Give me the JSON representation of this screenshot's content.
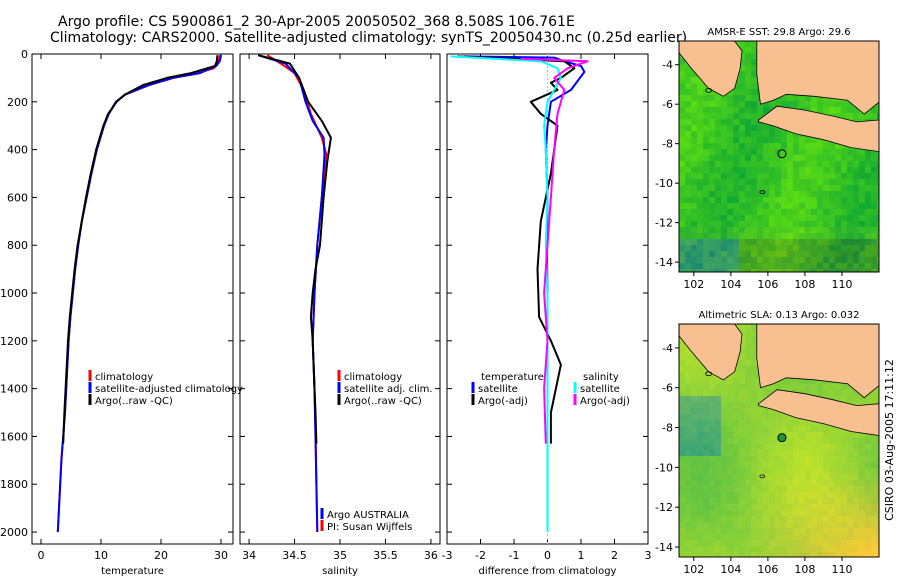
{
  "header": {
    "title_line1": "Argo profile: CS 5900861_2 30-Apr-2005 20050502_368 8.508S 106.761E",
    "title_line2": "Climatology: CARS2000. Satellite-adjusted climatology: synTS_20050430.nc (0.25d earlier)"
  },
  "colors": {
    "climatology": "#ff0000",
    "satellite": "#0000ff",
    "argo": "#000000",
    "satellite_salinity": "#00ffff",
    "argo_salinity": "#ff00ff",
    "land": "#f8c090"
  },
  "side_label": "CSIRO 03-Aug-2005 17:11:12",
  "chart_data": [
    {
      "type": "line",
      "id": "temperature",
      "xlabel": "temperature",
      "ylabel": "",
      "xlim": [
        -1.5,
        32
      ],
      "ylim": [
        2050,
        0
      ],
      "x_ticks": [
        0,
        10,
        20,
        30
      ],
      "y_ticks": [
        0,
        200,
        400,
        600,
        800,
        1000,
        1200,
        1400,
        1600,
        1800,
        2000
      ],
      "series": [
        {
          "name": "climatology",
          "color": "#ff0000",
          "points": [
            [
              29.8,
              5
            ],
            [
              29.6,
              30
            ],
            [
              28.8,
              60
            ],
            [
              26,
              80
            ],
            [
              22,
              100
            ],
            [
              18,
              130
            ],
            [
              14,
              170
            ],
            [
              12.5,
              200
            ],
            [
              11.3,
              250
            ],
            [
              10.5,
              300
            ],
            [
              9.3,
              400
            ],
            [
              8.4,
              500
            ],
            [
              7.6,
              600
            ],
            [
              6.8,
              700
            ],
            [
              6.2,
              800
            ],
            [
              5.7,
              900
            ],
            [
              5.3,
              1000
            ],
            [
              4.9,
              1100
            ],
            [
              4.6,
              1200
            ],
            [
              4.4,
              1300
            ],
            [
              4.2,
              1400
            ],
            [
              4,
              1500
            ],
            [
              3.7,
              1600
            ],
            [
              3.4,
              1700
            ],
            [
              3.2,
              1800
            ],
            [
              3,
              1900
            ],
            [
              2.8,
              2000
            ]
          ]
        },
        {
          "name": "satellite-adjusted climatology",
          "color": "#0000ff",
          "points": [
            [
              30,
              5
            ],
            [
              29.8,
              30
            ],
            [
              29.2,
              50
            ],
            [
              26.5,
              80
            ],
            [
              22,
              100
            ],
            [
              18,
              130
            ],
            [
              14,
              170
            ],
            [
              12.5,
              200
            ],
            [
              11.3,
              250
            ],
            [
              10.5,
              300
            ],
            [
              9.3,
              400
            ],
            [
              8.4,
              500
            ],
            [
              7.6,
              600
            ],
            [
              6.8,
              700
            ],
            [
              6.2,
              800
            ],
            [
              5.7,
              900
            ],
            [
              5.3,
              1000
            ],
            [
              4.9,
              1100
            ],
            [
              4.6,
              1200
            ],
            [
              4.4,
              1300
            ],
            [
              4.2,
              1400
            ],
            [
              4,
              1500
            ],
            [
              3.7,
              1600
            ],
            [
              3.4,
              1700
            ],
            [
              3.2,
              1800
            ],
            [
              3,
              1900
            ],
            [
              2.8,
              2000
            ]
          ]
        },
        {
          "name": "Argo(..raw -QC)",
          "color": "#000000",
          "points": [
            [
              29.4,
              5
            ],
            [
              29.3,
              30
            ],
            [
              29,
              50
            ],
            [
              25,
              80
            ],
            [
              21,
              100
            ],
            [
              17,
              130
            ],
            [
              14,
              170
            ],
            [
              12.6,
              200
            ],
            [
              11.2,
              250
            ],
            [
              10.4,
              300
            ],
            [
              9.2,
              400
            ],
            [
              8.3,
              500
            ],
            [
              7.5,
              600
            ],
            [
              6.8,
              700
            ],
            [
              6.1,
              800
            ],
            [
              5.6,
              900
            ],
            [
              5.2,
              1000
            ],
            [
              4.8,
              1100
            ],
            [
              4.5,
              1200
            ],
            [
              4.3,
              1300
            ],
            [
              4.1,
              1400
            ],
            [
              3.9,
              1500
            ],
            [
              3.7,
              1630
            ]
          ]
        }
      ],
      "legend": [
        "climatology",
        "satellite-adjusted climatology",
        "Argo(..raw -QC)"
      ]
    },
    {
      "type": "line",
      "id": "salinity",
      "xlabel": "salinity",
      "ylabel": "",
      "xlim": [
        33.9,
        36.1
      ],
      "ylim": [
        2050,
        0
      ],
      "x_ticks": [
        34,
        34.5,
        35,
        35.5,
        36
      ],
      "series": [
        {
          "name": "climatology",
          "color": "#ff0000",
          "points": [
            [
              34.2,
              5
            ],
            [
              34.35,
              40
            ],
            [
              34.5,
              80
            ],
            [
              34.6,
              150
            ],
            [
              34.68,
              250
            ],
            [
              34.8,
              350
            ],
            [
              34.85,
              420
            ],
            [
              34.8,
              600
            ],
            [
              34.75,
              800
            ],
            [
              34.72,
              1000
            ],
            [
              34.7,
              1200
            ],
            [
              34.72,
              1400
            ],
            [
              34.73,
              1600
            ],
            [
              34.74,
              1800
            ],
            [
              34.75,
              2000
            ]
          ]
        },
        {
          "name": "satellite adj. clim.",
          "color": "#0000ff",
          "points": [
            [
              34.1,
              5
            ],
            [
              34.4,
              40
            ],
            [
              34.55,
              100
            ],
            [
              34.62,
              200
            ],
            [
              34.7,
              280
            ],
            [
              34.82,
              350
            ],
            [
              34.83,
              420
            ],
            [
              34.8,
              600
            ],
            [
              34.75,
              800
            ],
            [
              34.72,
              1000
            ],
            [
              34.7,
              1200
            ],
            [
              34.72,
              1400
            ],
            [
              34.73,
              1600
            ],
            [
              34.74,
              1800
            ],
            [
              34.75,
              2000
            ]
          ]
        },
        {
          "name": "Argo(..raw -QC)",
          "color": "#000000",
          "points": [
            [
              34.1,
              5
            ],
            [
              34.45,
              40
            ],
            [
              34.55,
              100
            ],
            [
              34.65,
              200
            ],
            [
              34.8,
              280
            ],
            [
              34.9,
              350
            ],
            [
              34.86,
              450
            ],
            [
              34.82,
              600
            ],
            [
              34.78,
              800
            ],
            [
              34.73,
              900
            ],
            [
              34.7,
              1000
            ],
            [
              34.68,
              1100
            ],
            [
              34.7,
              1200
            ],
            [
              34.71,
              1300
            ],
            [
              34.72,
              1400
            ],
            [
              34.73,
              1500
            ],
            [
              34.74,
              1630
            ]
          ]
        }
      ],
      "legend": [
        "climatology",
        "satellite adj. clim.",
        "Argo(..raw -QC)"
      ],
      "annotation_line1": "Argo AUSTRALIA",
      "annotation_line2": "PI: Susan Wijffels"
    },
    {
      "type": "line",
      "id": "difference",
      "xlabel": "difference from climatology",
      "ylabel": "",
      "xlim": [
        -3,
        3
      ],
      "ylim": [
        2050,
        0
      ],
      "x_ticks": [
        -3,
        -2,
        -1,
        0,
        1,
        2,
        3
      ],
      "series": [
        {
          "name": "temperature satellite",
          "color": "#0000ff",
          "points": [
            [
              -2.5,
              10
            ],
            [
              0.2,
              15
            ],
            [
              0.5,
              30
            ],
            [
              1.0,
              50
            ],
            [
              1.1,
              75
            ],
            [
              0.7,
              150
            ],
            [
              0.1,
              200
            ],
            [
              0,
              300
            ],
            [
              -0.05,
              400
            ],
            [
              0,
              600
            ],
            [
              -0.02,
              800
            ],
            [
              0,
              1000
            ],
            [
              0,
              1200
            ],
            [
              0,
              1400
            ],
            [
              0,
              1600
            ],
            [
              0,
              1800
            ],
            [
              0,
              2000
            ]
          ]
        },
        {
          "name": "temperature Argo(-adj)",
          "color": "#000000",
          "points": [
            [
              -2.7,
              10
            ],
            [
              0.5,
              30
            ],
            [
              0.8,
              60
            ],
            [
              0.4,
              100
            ],
            [
              0.1,
              120
            ],
            [
              0.3,
              150
            ],
            [
              -0.5,
              200
            ],
            [
              -0.2,
              250
            ],
            [
              0.3,
              300
            ],
            [
              0.2,
              400
            ],
            [
              0.1,
              500
            ],
            [
              -0.2,
              700
            ],
            [
              -0.3,
              900
            ],
            [
              -0.25,
              1100
            ],
            [
              0.1,
              1200
            ],
            [
              0.4,
              1300
            ],
            [
              0.1,
              1500
            ],
            [
              0.1,
              1630
            ]
          ]
        },
        {
          "name": "salinity satellite",
          "color": "#00ffff",
          "points": [
            [
              -2.9,
              10
            ],
            [
              -0.2,
              30
            ],
            [
              0.3,
              60
            ],
            [
              0.4,
              100
            ],
            [
              0,
              200
            ],
            [
              -0.1,
              300
            ],
            [
              -0.05,
              400
            ],
            [
              0,
              600
            ],
            [
              -0.05,
              800
            ],
            [
              0,
              1000
            ],
            [
              0,
              1200
            ],
            [
              0,
              1400
            ],
            [
              0,
              1600
            ],
            [
              0,
              1800
            ],
            [
              0,
              2000
            ]
          ]
        },
        {
          "name": "salinity Argo(-adj)",
          "color": "#ff00ff",
          "points": [
            [
              -0.8,
              20
            ],
            [
              1.2,
              30
            ],
            [
              0.6,
              60
            ],
            [
              0.2,
              100
            ],
            [
              0.5,
              150
            ],
            [
              0.3,
              250
            ],
            [
              0.2,
              400
            ],
            [
              0.1,
              600
            ],
            [
              0,
              800
            ],
            [
              -0.1,
              1000
            ],
            [
              0,
              1200
            ],
            [
              -0.1,
              1400
            ],
            [
              -0.05,
              1630
            ]
          ]
        }
      ],
      "legend_left_header": "temperature",
      "legend_right_header": "salinity",
      "legend": [
        "satellite",
        "Argo(-adj)",
        "satellite",
        "Argo(-adj)"
      ]
    },
    {
      "type": "heatmap",
      "id": "sst_map",
      "title": "AMSR-E SST: 29.8 Argo: 29.6",
      "xlim": [
        101.2,
        112
      ],
      "ylim": [
        -14.5,
        -2.8
      ],
      "x_ticks": [
        102,
        104,
        106,
        108,
        110
      ],
      "y_ticks": [
        -4,
        -6,
        -8,
        -10,
        -12,
        -14
      ],
      "marker": {
        "lon": 106.761,
        "lat": -8.508
      }
    },
    {
      "type": "heatmap",
      "id": "sla_map",
      "title": "Altimetric SLA: 0.13 Argo: 0.032",
      "xlim": [
        101.2,
        112
      ],
      "ylim": [
        -14.5,
        -2.8
      ],
      "x_ticks": [
        102,
        104,
        106,
        108,
        110
      ],
      "y_ticks": [
        -4,
        -6,
        -8,
        -10,
        -12,
        -14
      ],
      "marker": {
        "lon": 106.761,
        "lat": -8.508
      }
    }
  ]
}
